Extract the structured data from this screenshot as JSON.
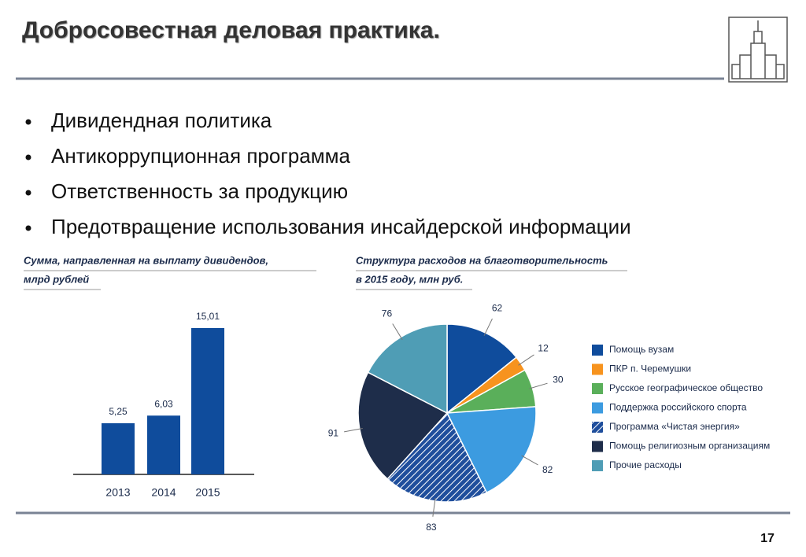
{
  "header": {
    "title": "Добросовестная деловая практика."
  },
  "bullets": [
    "Дивидендная политика",
    "Антикоррупционная программа",
    "Ответственность за продукцию",
    "Предотвращение использования инсайдерской информации"
  ],
  "page_number": "17",
  "chart_data": [
    {
      "type": "bar",
      "title": [
        "Сумма, направленная на выплату дивидендов,",
        "млрд рублей"
      ],
      "categories": [
        "2013",
        "2014",
        "2015"
      ],
      "values": [
        5.25,
        6.03,
        15.01
      ],
      "value_labels": [
        "5,25",
        "6,03",
        "15,01"
      ],
      "color": "#0f4c9c"
    },
    {
      "type": "pie",
      "title": [
        "Структура расходов на благотворительность",
        "в 2015 году, млн руб."
      ],
      "categories": [
        "Помощь вузам",
        "ПКР п. Черемушки",
        "Русское географическое общество",
        "Поддержка российского спорта",
        "Программа «Чистая энергия»",
        "Помощь религиозным организациям",
        "Прочие расходы"
      ],
      "values": [
        62,
        12,
        30,
        82,
        83,
        91,
        76
      ],
      "colors": [
        "#0f4c9c",
        "#f7931e",
        "#5aaf5a",
        "#3c9be0",
        "hatch",
        "#1e2d4a",
        "#4f9db5"
      ],
      "hatch_color": "#1f4e9c"
    }
  ]
}
